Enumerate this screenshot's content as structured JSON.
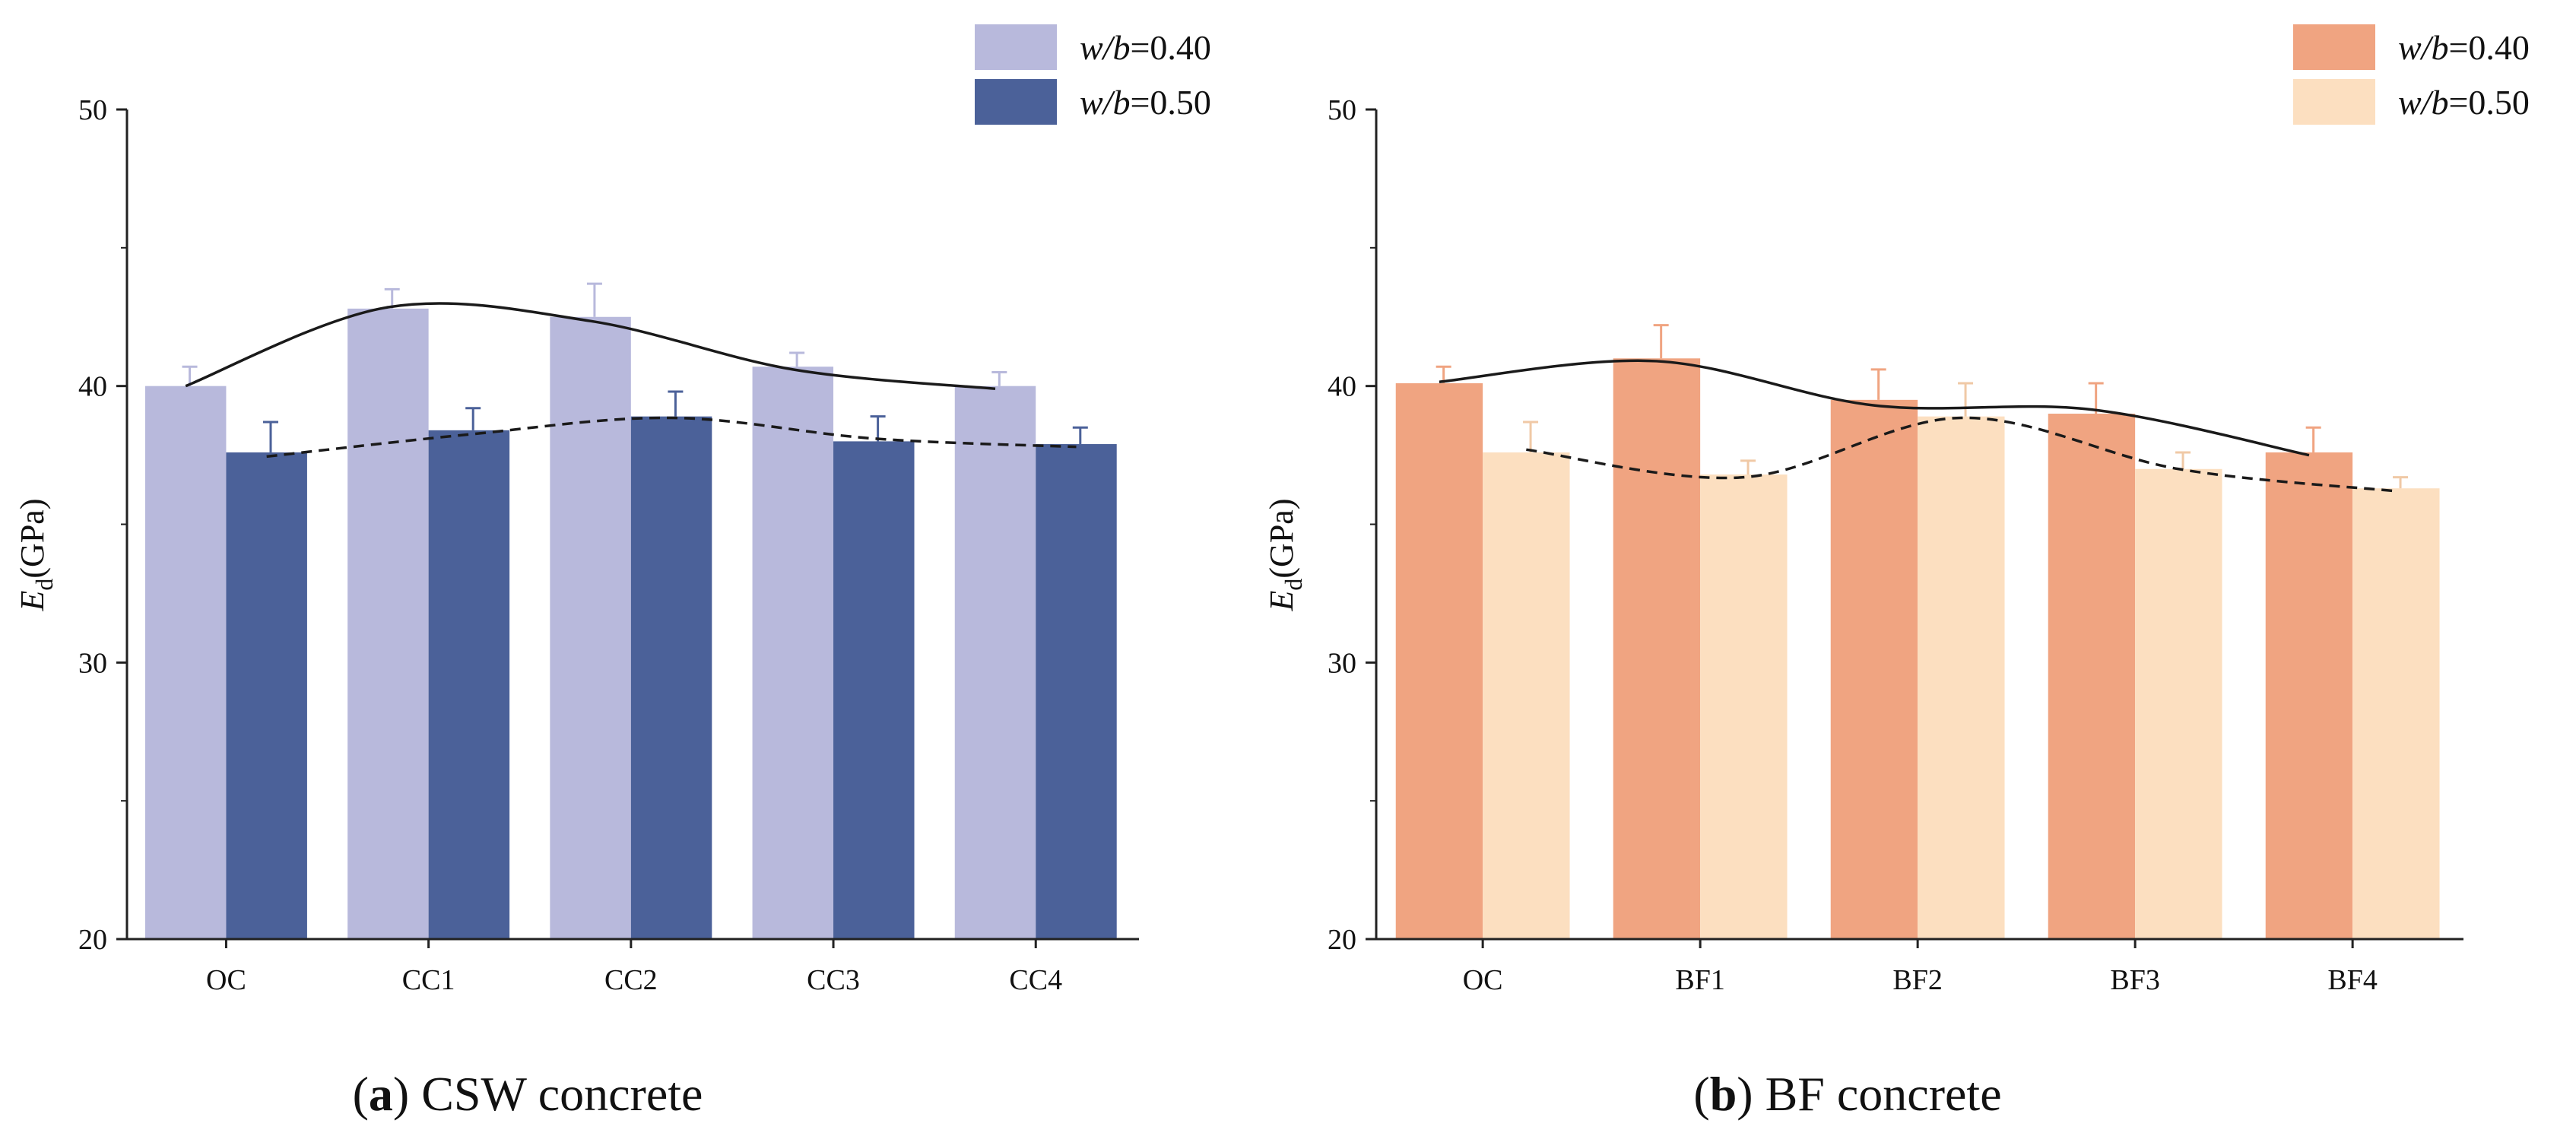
{
  "chart_data": [
    {
      "type": "bar",
      "panel": "a",
      "caption_letter": "a",
      "caption_text": " CSW concrete",
      "categories": [
        "OC",
        "CC1",
        "CC2",
        "CC3",
        "CC4"
      ],
      "series": [
        {
          "name_italic": "w/b",
          "name_value": "=0.40",
          "color": "#b8b9dc",
          "values": [
            40.0,
            42.8,
            42.5,
            40.7,
            40.0
          ],
          "errors": [
            0.7,
            0.7,
            1.2,
            0.5,
            0.5
          ]
        },
        {
          "name_italic": "w/b",
          "name_value": "=0.50",
          "color": "#4b6199",
          "values": [
            37.6,
            38.4,
            38.9,
            38.0,
            37.9
          ],
          "errors": [
            1.1,
            0.8,
            0.9,
            0.9,
            0.6
          ]
        }
      ],
      "trend_lines": [
        {
          "series": 0,
          "style": "solid",
          "values": [
            40.0,
            42.85,
            42.35,
            40.6,
            39.9
          ]
        },
        {
          "series": 1,
          "style": "dashed",
          "values": [
            37.45,
            38.25,
            38.85,
            38.1,
            37.8
          ]
        }
      ],
      "ylabel_main": "E",
      "ylabel_sub": "d",
      "ylabel_unit": "(GPa)",
      "yticks": [
        "20",
        "30",
        "40",
        "50"
      ],
      "ylim": [
        20,
        50
      ],
      "legend_position": "top-right"
    },
    {
      "type": "bar",
      "panel": "b",
      "caption_letter": "b",
      "caption_text": " BF concrete",
      "categories": [
        "OC",
        "BF1",
        "BF2",
        "BF3",
        "BF4"
      ],
      "series": [
        {
          "name_italic": "w/b",
          "name_value": "=0.40",
          "color": "#f0a481",
          "values": [
            40.1,
            41.0,
            39.5,
            39.0,
            37.6
          ],
          "errors": [
            0.6,
            1.2,
            1.1,
            1.1,
            0.9
          ]
        },
        {
          "name_italic": "w/b",
          "name_value": "=0.50",
          "color": "#fcdfc0",
          "values": [
            37.6,
            36.8,
            38.9,
            37.0,
            36.3
          ],
          "errors": [
            1.1,
            0.5,
            1.2,
            0.6,
            0.4
          ]
        }
      ],
      "trend_lines": [
        {
          "series": 0,
          "style": "solid",
          "values": [
            40.15,
            40.9,
            39.3,
            39.15,
            37.5
          ]
        },
        {
          "series": 1,
          "style": "dashed",
          "values": [
            37.7,
            36.7,
            38.85,
            37.0,
            36.2
          ]
        }
      ],
      "ylabel_main": "E",
      "ylabel_sub": "d",
      "ylabel_unit": "(GPa)",
      "yticks": [
        "20",
        "30",
        "40",
        "50"
      ],
      "ylim": [
        20,
        50
      ],
      "legend_position": "top-right"
    }
  ]
}
